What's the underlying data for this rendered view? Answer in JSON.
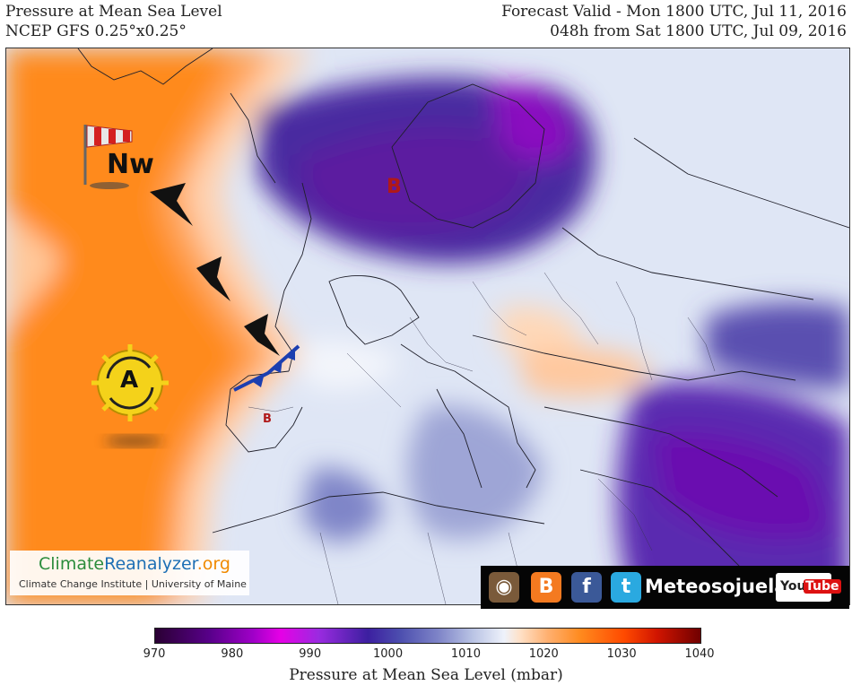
{
  "header": {
    "title": "Pressure at Mean Sea Level",
    "model": "NCEP GFS 0.25°x0.25°",
    "valid": "Forecast Valid - Mon 1800 UTC, Jul 11, 2016",
    "lead": "048h from Sat 1800 UTC, Jul 09, 2016"
  },
  "map": {
    "wind_label": "Nw",
    "high_label": "A",
    "low_label": "B",
    "low_label_small": "B",
    "icons": [
      "windsock-icon",
      "high-pressure-icon",
      "low-pressure-rain-icon",
      "small-low-pressure-icon",
      "wind-arrow-icon",
      "cold-front-icon"
    ]
  },
  "colorbar": {
    "ticks": [
      "970",
      "980",
      "990",
      "1000",
      "1010",
      "1020",
      "1030",
      "1040"
    ],
    "label": "Pressure at Mean Sea Level (mbar)",
    "min": 970,
    "max": 1040
  },
  "logo": {
    "name_part1": "Climate",
    "name_part2": "Reanalyzer",
    "name_part3": ".org",
    "subtitle": "Climate Change Institute | University of Maine"
  },
  "social": {
    "brand": "Meteosojuela",
    "youtube_a": "You",
    "youtube_b": "Tube"
  }
}
